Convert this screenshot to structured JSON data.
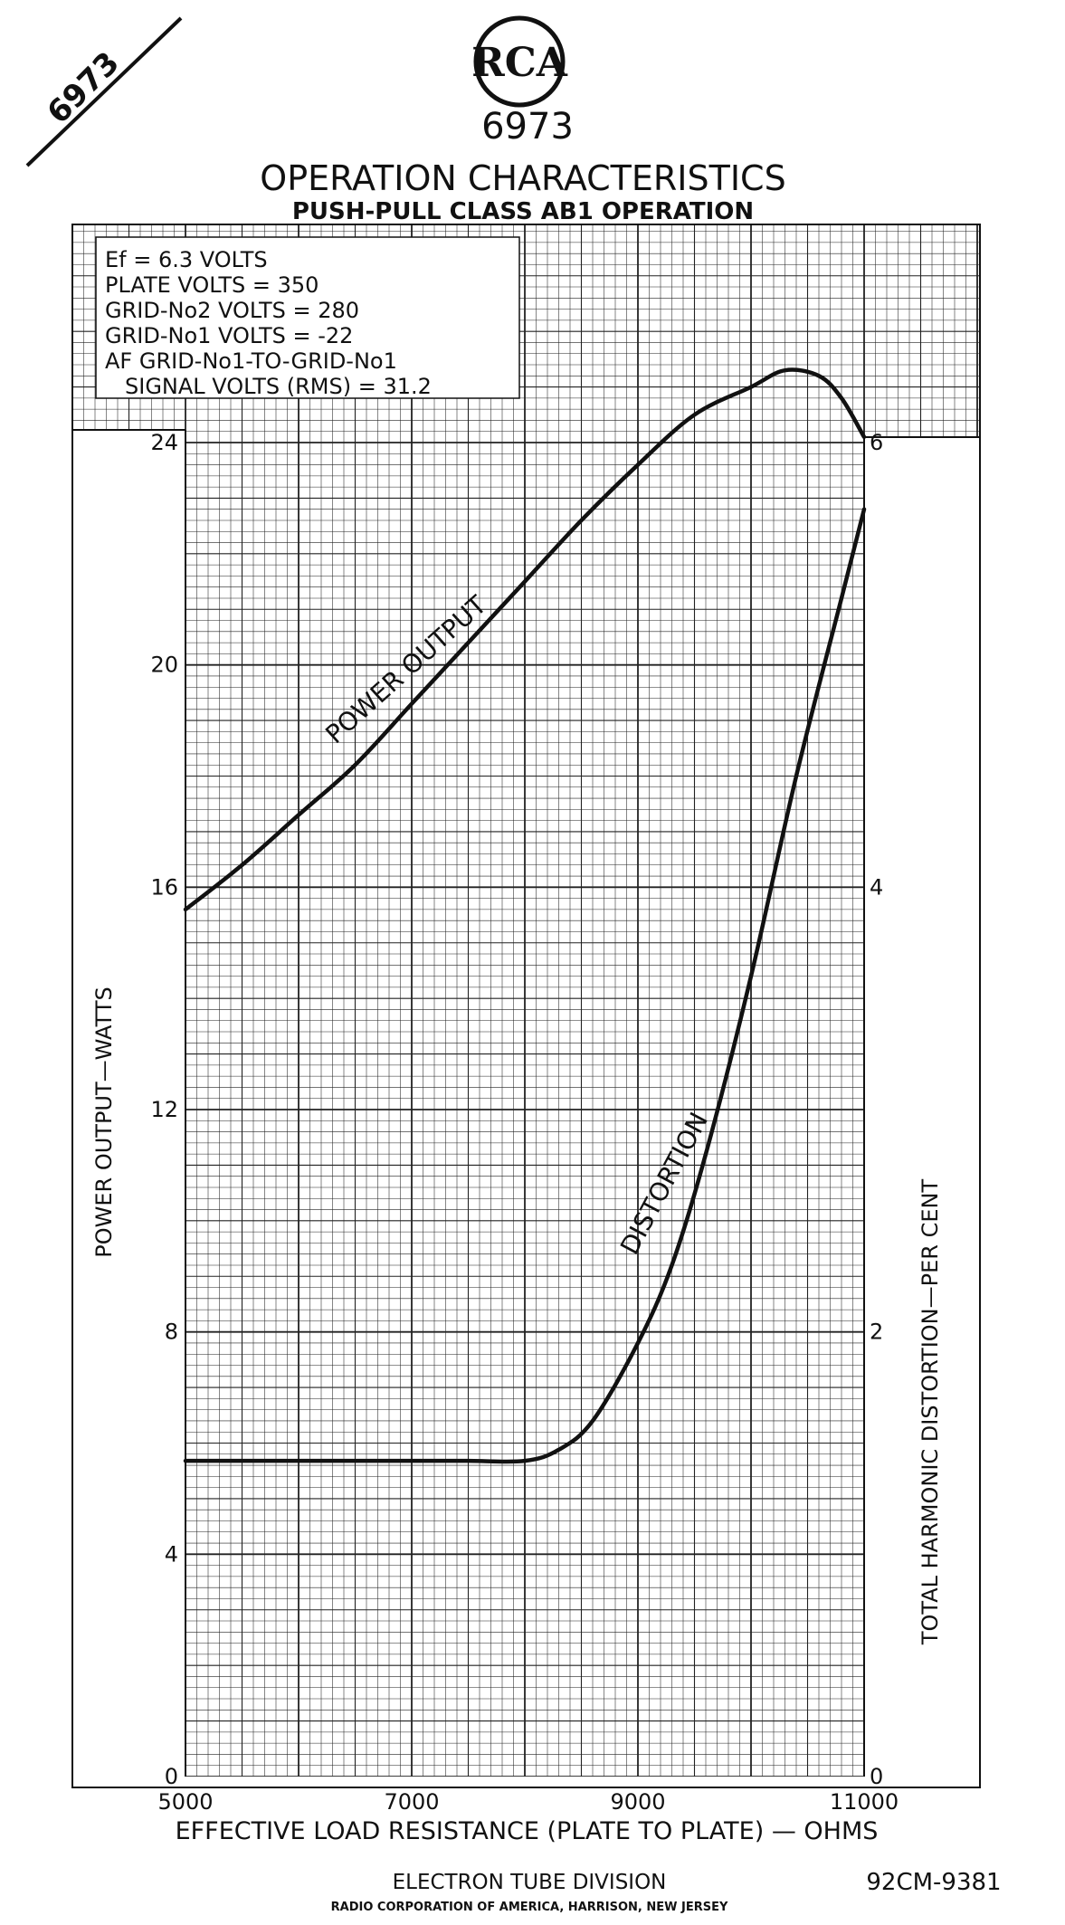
{
  "header": {
    "corner_code": "6973",
    "logo_text": "RCA",
    "tube_type": "6973",
    "title": "OPERATION CHARACTERISTICS",
    "subtitle": "PUSH-PULL CLASS AB1 OPERATION"
  },
  "conditions": [
    "Ef = 6.3 VOLTS",
    "PLATE  VOLTS = 350",
    "GRID-No2  VOLTS = 280",
    "GRID-No1  VOLTS = -22",
    "AF GRID-No1-TO-GRID-No1",
    "SIGNAL VOLTS (RMS) = 31.2"
  ],
  "footer": {
    "division": "ELECTRON TUBE DIVISION",
    "company": "RADIO CORPORATION OF AMERICA, HARRISON, NEW JERSEY",
    "drawing_number": "92CM-9381"
  },
  "chart_data": {
    "type": "line",
    "xlabel": "EFFECTIVE LOAD RESISTANCE (PLATE TO PLATE) — OHMS",
    "ylabel_left": "POWER OUTPUT—WATTS",
    "ylabel_right": "TOTAL HARMONIC DISTORTION—PER CENT",
    "xlim": [
      5000,
      11000
    ],
    "ylim_left": [
      0,
      24
    ],
    "ylim_right": [
      0,
      6
    ],
    "x_ticks": [
      5000,
      7000,
      9000,
      11000
    ],
    "y_ticks_left": [
      0,
      4,
      8,
      12,
      16,
      20,
      24
    ],
    "y_ticks_right": [
      0,
      2,
      4,
      6
    ],
    "grid": true,
    "series": [
      {
        "name": "POWER OUTPUT",
        "axis": "left",
        "x": [
          5000,
          5500,
          6000,
          6500,
          7000,
          7500,
          8000,
          8500,
          9000,
          9500,
          10000,
          10300,
          10600,
          10800,
          11000
        ],
        "y": [
          15.6,
          16.4,
          17.3,
          18.2,
          19.3,
          20.4,
          21.5,
          22.6,
          23.6,
          24.5,
          25.0,
          25.3,
          25.2,
          24.8,
          24.1
        ]
      },
      {
        "name": "DISTORTION",
        "axis": "right",
        "x": [
          5000,
          6000,
          7000,
          7500,
          8000,
          8300,
          8600,
          9000,
          9300,
          9600,
          10000,
          10400,
          10800,
          11000
        ],
        "y": [
          1.42,
          1.42,
          1.42,
          1.42,
          1.42,
          1.47,
          1.6,
          1.95,
          2.3,
          2.8,
          3.6,
          4.5,
          5.3,
          5.7
        ]
      }
    ]
  }
}
